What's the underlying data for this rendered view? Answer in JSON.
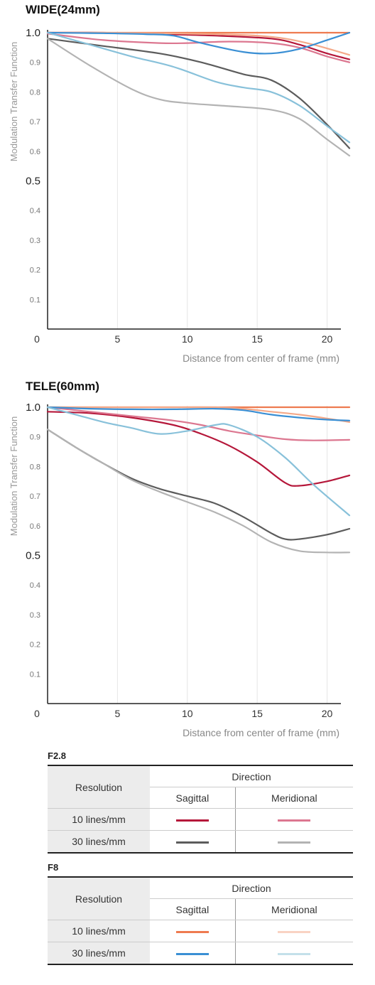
{
  "charts": [
    {
      "title": "WIDE(24mm)"
    },
    {
      "title": "TELE(60mm)"
    }
  ],
  "chart_data": [
    {
      "type": "line",
      "title": "WIDE(24mm)",
      "xlabel": "Distance from center of frame (mm)",
      "ylabel": "Modulation Transfer Function",
      "xlim": [
        0,
        21.6
      ],
      "ylim": [
        0,
        1.0
      ],
      "x_ticks": [
        "0",
        "5",
        "10",
        "15",
        "20"
      ],
      "y_ticks": [
        "0.1",
        "0.2",
        "0.3",
        "0.4",
        "0.5",
        "0.6",
        "0.7",
        "0.8",
        "0.9",
        "1.0"
      ],
      "grid": true,
      "series": [
        {
          "color": "#b5173a",
          "x": [
            0,
            4,
            8,
            12,
            16,
            18,
            20,
            21.6
          ],
          "y": [
            1.0,
            1.0,
            0.995,
            0.99,
            0.98,
            0.96,
            0.93,
            0.91
          ]
        },
        {
          "color": "#dc7790",
          "x": [
            0,
            4,
            8,
            10,
            13,
            16,
            18,
            20,
            21.6
          ],
          "y": [
            0.997,
            0.975,
            0.965,
            0.965,
            0.97,
            0.965,
            0.95,
            0.92,
            0.9
          ]
        },
        {
          "color": "#5c5c5c",
          "x": [
            0,
            4,
            8,
            11,
            14,
            16,
            18,
            20,
            21.6
          ],
          "y": [
            0.98,
            0.955,
            0.93,
            0.9,
            0.86,
            0.84,
            0.78,
            0.69,
            0.61
          ]
        },
        {
          "color": "#b3b3b3",
          "x": [
            0,
            3,
            6,
            8,
            10,
            13,
            16,
            18,
            20,
            21.6
          ],
          "y": [
            0.98,
            0.89,
            0.81,
            0.775,
            0.762,
            0.752,
            0.74,
            0.71,
            0.64,
            0.585
          ]
        },
        {
          "color": "#ee7b50",
          "x": [
            0,
            4,
            8,
            12,
            16,
            20,
            21.6
          ],
          "y": [
            1.0,
            1.0,
            1.0,
            1.0,
            1.0,
            1.0,
            1.0
          ]
        },
        {
          "color": "#f4a989",
          "x": [
            0,
            4,
            8,
            12,
            15,
            17,
            19,
            21.6
          ],
          "y": [
            1.0,
            1.0,
            0.998,
            0.995,
            0.99,
            0.98,
            0.96,
            0.925
          ]
        },
        {
          "color": "#3a8fd4",
          "x": [
            0,
            4,
            7,
            9,
            11,
            14,
            16,
            18,
            20,
            21.6
          ],
          "y": [
            1.0,
            0.998,
            0.995,
            0.99,
            0.965,
            0.935,
            0.93,
            0.945,
            0.975,
            1.0
          ]
        },
        {
          "color": "#88c1da",
          "x": [
            0,
            3,
            6,
            9,
            12,
            14,
            16,
            18,
            20,
            21.6
          ],
          "y": [
            1.0,
            0.96,
            0.92,
            0.885,
            0.835,
            0.815,
            0.8,
            0.755,
            0.685,
            0.63
          ]
        }
      ]
    },
    {
      "type": "line",
      "title": "TELE(60mm)",
      "xlabel": "Distance from center of frame (mm)",
      "ylabel": "Modulation Transfer Function",
      "xlim": [
        0,
        21.6
      ],
      "ylim": [
        0,
        1.0
      ],
      "x_ticks": [
        "0",
        "5",
        "10",
        "15",
        "20"
      ],
      "y_ticks": [
        "0.1",
        "0.2",
        "0.3",
        "0.4",
        "0.5",
        "0.6",
        "0.7",
        "0.8",
        "0.9",
        "1.0"
      ],
      "grid": true,
      "series": [
        {
          "color": "#b5173a",
          "x": [
            0,
            3,
            6,
            9,
            11,
            13,
            15,
            17,
            18,
            20,
            21.6
          ],
          "y": [
            0.985,
            0.98,
            0.965,
            0.94,
            0.91,
            0.87,
            0.815,
            0.745,
            0.735,
            0.75,
            0.77
          ]
        },
        {
          "color": "#dc7790",
          "x": [
            0,
            3,
            6,
            9,
            11,
            13,
            15,
            17,
            19,
            21.6
          ],
          "y": [
            1.0,
            0.985,
            0.97,
            0.955,
            0.94,
            0.92,
            0.905,
            0.892,
            0.888,
            0.89
          ]
        },
        {
          "color": "#5c5c5c",
          "x": [
            0,
            2,
            4,
            6,
            8,
            10,
            12,
            14,
            16,
            17,
            18,
            20,
            21.6
          ],
          "y": [
            0.925,
            0.865,
            0.81,
            0.76,
            0.725,
            0.7,
            0.675,
            0.63,
            0.575,
            0.555,
            0.555,
            0.57,
            0.59
          ]
        },
        {
          "color": "#b3b3b3",
          "x": [
            0,
            2,
            4,
            6,
            8,
            10,
            12,
            14,
            16,
            18,
            20,
            21.6
          ],
          "y": [
            0.925,
            0.865,
            0.81,
            0.755,
            0.715,
            0.68,
            0.645,
            0.6,
            0.545,
            0.515,
            0.51,
            0.51
          ]
        },
        {
          "color": "#ee7b50",
          "x": [
            0,
            4,
            8,
            12,
            16,
            20,
            21.6
          ],
          "y": [
            1.0,
            1.0,
            1.0,
            1.0,
            1.0,
            1.0,
            1.0
          ]
        },
        {
          "color": "#f4a989",
          "x": [
            0,
            4,
            8,
            12,
            14,
            16,
            18,
            20,
            21.6
          ],
          "y": [
            1.0,
            1.0,
            1.0,
            1.0,
            0.995,
            0.985,
            0.975,
            0.962,
            0.95
          ]
        },
        {
          "color": "#3a8fd4",
          "x": [
            0,
            3,
            6,
            9,
            12,
            14,
            16,
            18,
            20,
            21.6
          ],
          "y": [
            1.0,
            0.995,
            0.993,
            0.993,
            0.995,
            0.99,
            0.975,
            0.965,
            0.958,
            0.955
          ]
        },
        {
          "color": "#88c1da",
          "x": [
            0,
            2,
            4,
            6,
            8,
            10,
            12,
            13,
            15,
            17,
            19,
            21.6
          ],
          "y": [
            1.0,
            0.975,
            0.95,
            0.93,
            0.91,
            0.92,
            0.94,
            0.94,
            0.9,
            0.83,
            0.74,
            0.635
          ]
        }
      ]
    }
  ],
  "legend": [
    {
      "label": "F2.8",
      "resolution_header": "Resolution",
      "direction_header": "Direction",
      "sagittal_header": "Sagittal",
      "meridional_header": "Meridional",
      "rows": [
        {
          "label": "10 lines/mm",
          "sagittal_color": "#b5173a",
          "meridional_color": "#dc7790"
        },
        {
          "label": "30 lines/mm",
          "sagittal_color": "#5c5c5c",
          "meridional_color": "#b3b3b3"
        }
      ]
    },
    {
      "label": "F8",
      "resolution_header": "Resolution",
      "direction_header": "Direction",
      "sagittal_header": "Sagittal",
      "meridional_header": "Meridional",
      "rows": [
        {
          "label": "10 lines/mm",
          "sagittal_color": "#ee7b50",
          "meridional_color": "#f9d3c3"
        },
        {
          "label": "30 lines/mm",
          "sagittal_color": "#3a8fd4",
          "meridional_color": "#c4e0ea"
        }
      ]
    }
  ]
}
